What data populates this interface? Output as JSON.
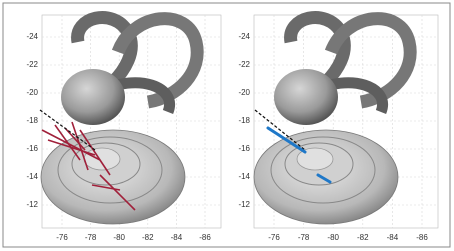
{
  "panels": [
    {
      "yticks": [
        -24,
        -22,
        -20,
        -18,
        -16,
        -14,
        -12
      ],
      "xticks": [
        -76,
        -78,
        -80,
        -82,
        -84,
        -86
      ]
    },
    {
      "yticks": [
        -24,
        -22,
        -20,
        -18,
        -16,
        -14,
        -12
      ],
      "xticks": [
        -76,
        -78,
        -80,
        -82,
        -84,
        -86
      ]
    }
  ]
}
